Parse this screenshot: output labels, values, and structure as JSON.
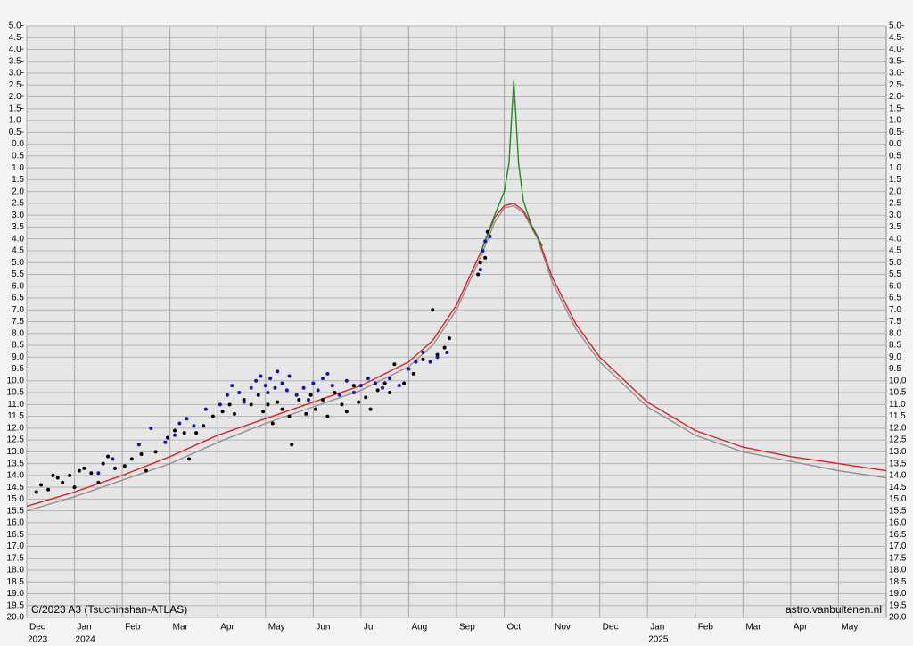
{
  "chart_data": {
    "type": "scatter",
    "title": "C/2023 A3 (Tsuchinshan-ATLAS)",
    "source": "astro.vanbuitenen.nl",
    "xlim": [
      0,
      18
    ],
    "ylim": [
      -5,
      20
    ],
    "y_inverted": true,
    "grid": true,
    "xticks": [
      {
        "value": 0,
        "label": "Dec"
      },
      {
        "value": 1,
        "label": "Jan"
      },
      {
        "value": 2,
        "label": "Feb"
      },
      {
        "value": 3,
        "label": "Mar"
      },
      {
        "value": 4,
        "label": "Apr"
      },
      {
        "value": 5,
        "label": "May"
      },
      {
        "value": 6,
        "label": "Jun"
      },
      {
        "value": 7,
        "label": "Jul"
      },
      {
        "value": 8,
        "label": "Aug"
      },
      {
        "value": 9,
        "label": "Sep"
      },
      {
        "value": 10,
        "label": "Oct"
      },
      {
        "value": 11,
        "label": "Nov"
      },
      {
        "value": 12,
        "label": "Dec"
      },
      {
        "value": 13,
        "label": "Jan"
      },
      {
        "value": 14,
        "label": "Feb"
      },
      {
        "value": 15,
        "label": "Mar"
      },
      {
        "value": 16,
        "label": "Apr"
      },
      {
        "value": 17,
        "label": "May"
      }
    ],
    "year_labels": [
      {
        "value": 0,
        "label": "2023"
      },
      {
        "value": 1,
        "label": "2024"
      },
      {
        "value": 13,
        "label": "2025"
      }
    ],
    "yticks": [
      {
        "value": -5,
        "label": "5.0-"
      },
      {
        "value": -4.5,
        "label": "4.5-"
      },
      {
        "value": -4,
        "label": "4.0-"
      },
      {
        "value": -3.5,
        "label": "3.5-"
      },
      {
        "value": -3,
        "label": "3.0-"
      },
      {
        "value": -2.5,
        "label": "2.5-"
      },
      {
        "value": -2,
        "label": "2.0-"
      },
      {
        "value": -1.5,
        "label": "1.5-"
      },
      {
        "value": -1,
        "label": "1.0-"
      },
      {
        "value": -0.5,
        "label": "0.5-"
      },
      {
        "value": 0,
        "label": "0.0"
      },
      {
        "value": 0.5,
        "label": "0.5"
      },
      {
        "value": 1,
        "label": "1.0"
      },
      {
        "value": 1.5,
        "label": "1.5"
      },
      {
        "value": 2,
        "label": "2.0"
      },
      {
        "value": 2.5,
        "label": "2.5"
      },
      {
        "value": 3,
        "label": "3.0"
      },
      {
        "value": 3.5,
        "label": "3.5"
      },
      {
        "value": 4,
        "label": "4.0"
      },
      {
        "value": 4.5,
        "label": "4.5"
      },
      {
        "value": 5,
        "label": "5.0"
      },
      {
        "value": 5.5,
        "label": "5.5"
      },
      {
        "value": 6,
        "label": "6.0"
      },
      {
        "value": 6.5,
        "label": "6.5"
      },
      {
        "value": 7,
        "label": "7.0"
      },
      {
        "value": 7.5,
        "label": "7.5"
      },
      {
        "value": 8,
        "label": "8.0"
      },
      {
        "value": 8.5,
        "label": "8.5"
      },
      {
        "value": 9,
        "label": "9.0"
      },
      {
        "value": 9.5,
        "label": "9.5"
      },
      {
        "value": 10,
        "label": "10.0"
      },
      {
        "value": 10.5,
        "label": "10.5"
      },
      {
        "value": 11,
        "label": "11.0"
      },
      {
        "value": 11.5,
        "label": "11.5"
      },
      {
        "value": 12,
        "label": "12.0"
      },
      {
        "value": 12.5,
        "label": "12.5"
      },
      {
        "value": 13,
        "label": "13.0"
      },
      {
        "value": 13.5,
        "label": "13.5"
      },
      {
        "value": 14,
        "label": "14.0"
      },
      {
        "value": 14.5,
        "label": "14.5"
      },
      {
        "value": 15,
        "label": "15.0"
      },
      {
        "value": 15.5,
        "label": "15.5"
      },
      {
        "value": 16,
        "label": "16.0"
      },
      {
        "value": 16.5,
        "label": "16.5"
      },
      {
        "value": 17,
        "label": "17.0"
      },
      {
        "value": 17.5,
        "label": "17.5"
      },
      {
        "value": 18,
        "label": "18.0"
      },
      {
        "value": 18.5,
        "label": "18.5"
      },
      {
        "value": 19,
        "label": "19.0"
      },
      {
        "value": 19.5,
        "label": "19.5"
      },
      {
        "value": 20,
        "label": "20.0"
      }
    ],
    "series": [
      {
        "mark": "line",
        "color": "#909090",
        "x": [
          0,
          1,
          2,
          3,
          4,
          5,
          6,
          7,
          8,
          8.5,
          9,
          9.5,
          9.8,
          10,
          10.2,
          10.4,
          10.7,
          11,
          11.5,
          12,
          13,
          14,
          15,
          16,
          17,
          18
        ],
        "values": [
          15.5,
          14.9,
          14.2,
          13.5,
          12.6,
          11.8,
          11.1,
          10.4,
          9.4,
          8.5,
          7.0,
          4.8,
          3.3,
          2.7,
          2.6,
          2.9,
          4.0,
          5.8,
          7.8,
          9.2,
          11.1,
          12.3,
          13.0,
          13.4,
          13.8,
          14.1
        ]
      },
      {
        "mark": "line",
        "color": "#e02020",
        "x": [
          0,
          1,
          2,
          3,
          4,
          5,
          6,
          7,
          8,
          8.5,
          9,
          9.5,
          9.8,
          10,
          10.2,
          10.4,
          10.7,
          11,
          11.5,
          12,
          13,
          14,
          15,
          16,
          17,
          18
        ],
        "values": [
          15.3,
          14.7,
          14.0,
          13.2,
          12.3,
          11.6,
          10.9,
          10.2,
          9.2,
          8.3,
          6.8,
          4.6,
          3.1,
          2.6,
          2.5,
          2.8,
          3.9,
          5.6,
          7.6,
          9.0,
          10.9,
          12.1,
          12.8,
          13.2,
          13.5,
          13.8
        ]
      },
      {
        "mark": "line",
        "color": "#1e8c1e",
        "x": [
          9.5,
          9.8,
          10,
          10.1,
          10.15,
          10.2,
          10.25,
          10.3,
          10.4,
          10.6,
          10.8
        ],
        "values": [
          4.6,
          3.0,
          2.0,
          0.8,
          -1,
          -2.7,
          -1,
          0.8,
          2.4,
          3.6,
          4.3
        ]
      },
      {
        "mark": "dot",
        "color": "#000000",
        "x": [
          0.2,
          0.3,
          0.45,
          0.55,
          0.65,
          0.75,
          0.9,
          1.0,
          1.1,
          1.2,
          1.35,
          1.5,
          1.6,
          1.7,
          1.85,
          2.05,
          2.2,
          2.4,
          2.5,
          2.7,
          2.95,
          3.1,
          3.3,
          3.4,
          3.55,
          3.7,
          3.9,
          4.1,
          4.25,
          4.35,
          4.55,
          4.7,
          4.85,
          4.95,
          5.05,
          5.15,
          5.25,
          5.35,
          5.5,
          5.55,
          5.7,
          5.85,
          5.95,
          6.05,
          6.2,
          6.3,
          6.45,
          6.6,
          6.7,
          6.85,
          6.95,
          7.1,
          7.2,
          7.35,
          7.5,
          7.6,
          7.7,
          7.9,
          8.1,
          8.3,
          8.5,
          8.6,
          8.75,
          8.85,
          9.45,
          9.5,
          9.6,
          9.65
        ],
        "values": [
          14.7,
          14.4,
          14.6,
          14.0,
          14.1,
          14.3,
          14.0,
          14.5,
          13.8,
          13.7,
          13.9,
          14.3,
          13.5,
          13.2,
          13.7,
          13.6,
          13.3,
          13.1,
          13.8,
          13.0,
          12.4,
          12.1,
          12.2,
          13.3,
          12.2,
          11.9,
          11.5,
          11.3,
          11.0,
          11.4,
          10.8,
          11.0,
          10.6,
          11.3,
          11.0,
          11.8,
          10.9,
          11.2,
          11.5,
          12.7,
          10.8,
          11.4,
          10.6,
          11.2,
          10.8,
          11.5,
          10.5,
          11.0,
          11.3,
          10.2,
          10.9,
          10.7,
          11.2,
          10.4,
          10.1,
          10.5,
          9.3,
          10.1,
          9.7,
          9.1,
          7.0,
          8.9,
          8.6,
          8.2,
          5.5,
          5.0,
          4.8,
          3.7
        ]
      },
      {
        "mark": "dot",
        "color": "#1010d0",
        "x": [
          1.5,
          1.8,
          2.35,
          2.6,
          2.9,
          3.1,
          3.2,
          3.35,
          3.5,
          3.75,
          4.05,
          4.2,
          4.3,
          4.45,
          4.55,
          4.7,
          4.8,
          4.9,
          5.0,
          5.05,
          5.1,
          5.2,
          5.25,
          5.35,
          5.45,
          5.5,
          5.65,
          5.8,
          5.9,
          6.0,
          6.1,
          6.2,
          6.3,
          6.4,
          6.55,
          6.7,
          6.85,
          7.0,
          7.15,
          7.3,
          7.45,
          7.6,
          7.8,
          8.0,
          8.15,
          8.3,
          8.45,
          8.6,
          8.8,
          9.5,
          9.55,
          9.6,
          9.7
        ],
        "values": [
          13.9,
          13.3,
          12.7,
          12.0,
          12.6,
          12.3,
          11.8,
          11.6,
          11.9,
          11.2,
          11.0,
          10.6,
          10.2,
          10.5,
          10.9,
          10.3,
          10.0,
          9.8,
          10.2,
          10.5,
          9.9,
          10.3,
          9.6,
          10.1,
          10.4,
          9.8,
          10.6,
          10.3,
          10.8,
          10.1,
          10.4,
          9.9,
          9.7,
          10.2,
          10.6,
          10.0,
          10.5,
          10.2,
          9.9,
          10.1,
          10.3,
          9.9,
          10.2,
          9.5,
          9.2,
          8.8,
          9.2,
          9.0,
          8.8,
          5.3,
          4.5,
          4.1,
          3.9
        ]
      }
    ]
  }
}
